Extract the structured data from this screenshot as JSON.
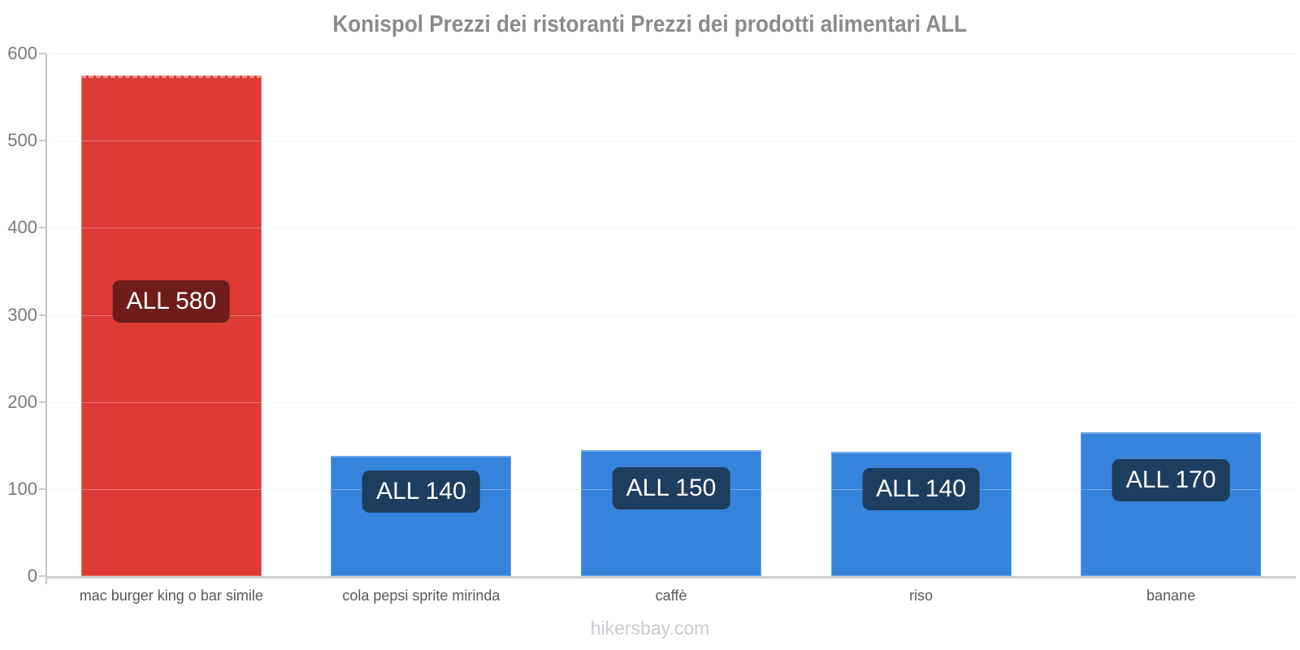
{
  "page": {
    "footer": "hikersbay.com"
  },
  "chart_data": {
    "type": "bar",
    "title": "Konispol Prezzi dei ristoranti Prezzi dei prodotti alimentari ALL",
    "currency": "ALL",
    "categories": [
      "mac burger king o bar simile",
      "cola pepsi sprite mirinda",
      "caffè",
      "riso",
      "banane"
    ],
    "values": [
      580,
      140,
      150,
      140,
      170
    ],
    "drawn_values": [
      575,
      138,
      145,
      143,
      165
    ],
    "bar_labels": [
      "ALL 580",
      "ALL 140",
      "ALL 150",
      "ALL 140",
      "ALL 170"
    ],
    "bar_colors": [
      "#dc3a33",
      "#3583db",
      "#3583db",
      "#3583db",
      "#3583db"
    ],
    "badge_colors": [
      "#6e1d18",
      "#1d3e5f",
      "#1d3e5f",
      "#1d3e5f",
      "#1d3e5f"
    ],
    "accent_bar_index": 0,
    "ylim": [
      0,
      600
    ],
    "yticks": [
      0,
      100,
      200,
      300,
      400,
      500,
      600
    ],
    "xlabel": "",
    "ylabel": "",
    "grid": true,
    "legend": false,
    "colors": {
      "gridline": "#f3f3f5",
      "gridline_top": "#ececef",
      "axis": "#c4c4ca",
      "baseline": "#cfcfcf",
      "title_text": "#8b8b8b",
      "ytick_text": "#7a7a7a",
      "xtick_text": "#58585b",
      "footer_text": "#c9ccd2"
    }
  }
}
